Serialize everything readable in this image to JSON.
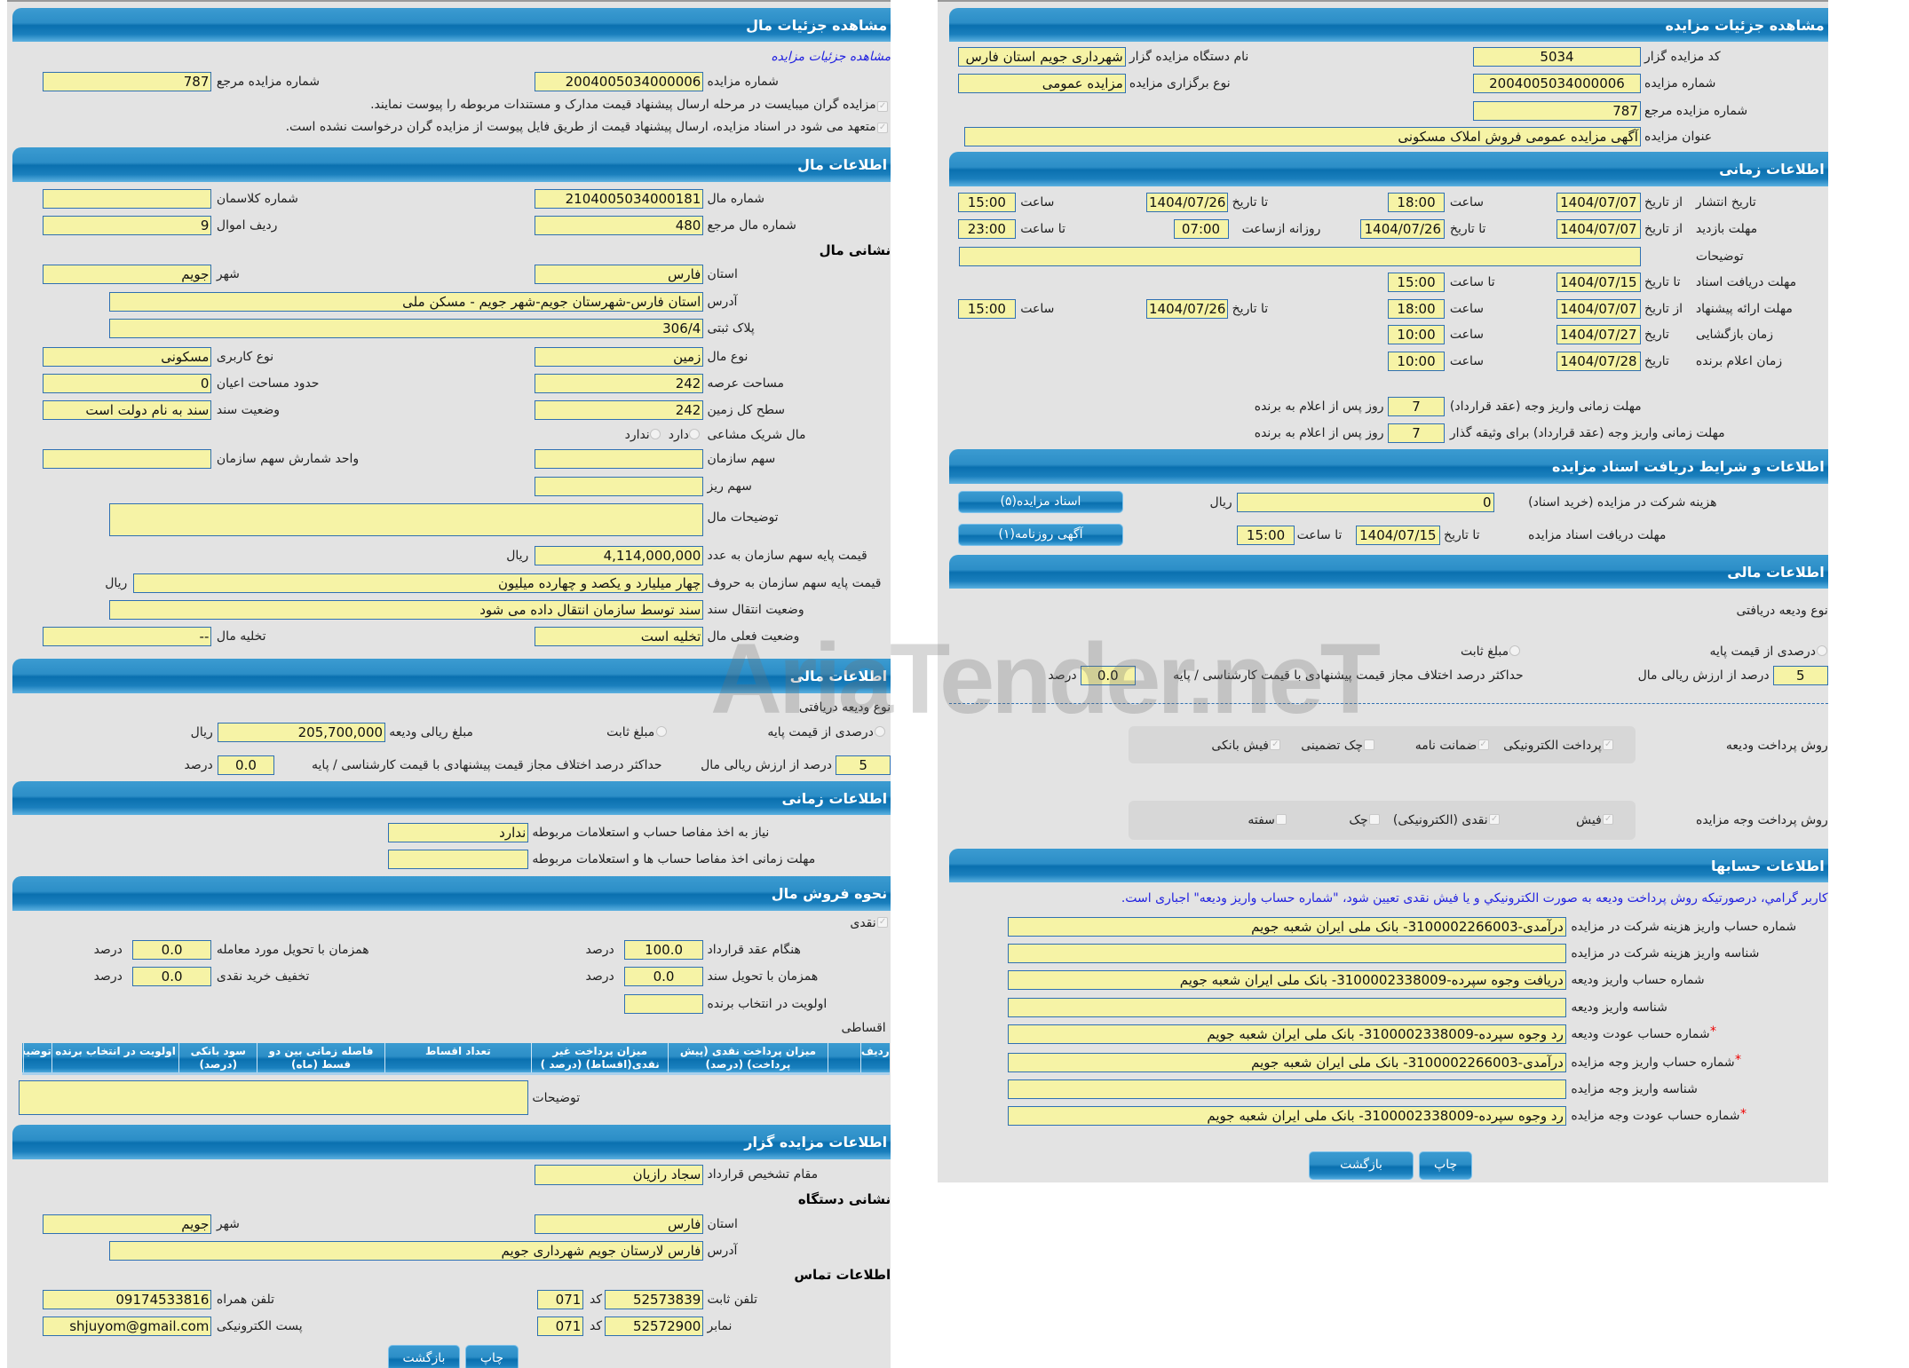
{
  "mal": {
    "header": "مشاهده جزئیات مال",
    "auction_link": "مشاهده جزئیات مزایده",
    "auction_number": {
      "label": "شماره مزایده",
      "value": "2004005034000006"
    },
    "auction_ref_number": {
      "label": "شماره مزایده مرجع",
      "value": "787"
    },
    "notice_attach": "مزایده گران میبایست در مرحله ارسال پیشنهاد قیمت مدارک و مستندات مربوطه را پیوست نمایند.",
    "notice_commit": "متعهد می شود در اسناد مزایده، ارسال پیشنهاد قیمت از طریق فایل پیوست از مزایده گران درخواست نشده است."
  },
  "mal_info": {
    "header": "اطلاعات مال",
    "item_number": {
      "label": "شماره مال",
      "value": "2104005034000181"
    },
    "class_number": {
      "label": "شماره کلاسمان",
      "value": ""
    },
    "item_ref_number": {
      "label": "شماره مال مرجع",
      "value": "480"
    },
    "asset_row": {
      "label": "ردیف اموال",
      "value": "9"
    },
    "address_heading": "نشانی مال",
    "province": {
      "label": "استان",
      "value": "فارس"
    },
    "city": {
      "label": "شهر",
      "value": "جویم"
    },
    "address": {
      "label": "آدرس",
      "value": "استان فارس-شهرستان جویم-شهر جویم - مسکن ملی"
    },
    "plate": {
      "label": "پلاک ثبتی",
      "value": "306/4"
    },
    "item_type": {
      "label": "نوع مال",
      "value": "زمین"
    },
    "usage_type": {
      "label": "نوع کاربری",
      "value": "مسکونی"
    },
    "land_area": {
      "label": "مساحت عرصه",
      "value": "242"
    },
    "building_area": {
      "label": "حدود مساحت اعیان",
      "value": "0"
    },
    "total_area": {
      "label": "سطح کل زمین",
      "value": "242"
    },
    "deed_status": {
      "label": "وضعیت سند",
      "value": "سند به نام دولت است"
    },
    "shared": {
      "label": "مال شریک مشاعی",
      "yes": "دارد",
      "no": "ندارد"
    },
    "org_share": {
      "label": "سهم سازمان",
      "value": ""
    },
    "share_unit": {
      "label": "واحد شمارش سهم سازمان",
      "value": ""
    },
    "sub_share": {
      "label": "سهم ریز",
      "value": ""
    },
    "description": {
      "label": "توضیحات مال",
      "value": ""
    },
    "base_price_num": {
      "label": "قیمت پایه سهم سازمان به عدد",
      "value": "4,114,000,000",
      "unit": "ریال"
    },
    "base_price_text": {
      "label": "قیمت پایه سهم سازمان به حروف",
      "value": "چهار میلیارد و یکصد و چهارده میلیون",
      "unit": "ریال"
    },
    "deed_transfer": {
      "label": "وضعیت انتقال سند",
      "value": "سند توسط سازمان انتقال داده می شود"
    },
    "current_status": {
      "label": "وضعیت فعلی مال",
      "value": "تخلیه است"
    },
    "evacuation": {
      "label": "تخلیه مال",
      "value": "--"
    }
  },
  "mal_finance": {
    "header": "اطلاعات مالی",
    "deposit_type": "نوع ودیعه دریافتی",
    "opt_percent": "درصدی از قیمت پایه",
    "opt_fixed": "مبلغ ثابت",
    "deposit_amount": {
      "label": "مبلغ ریالی ودیعه",
      "value": "205,700,000",
      "unit": "ریال"
    },
    "percent": {
      "label": "درصد از ارزش ریالی مال",
      "value": "5"
    },
    "max_diff": {
      "label": "حداکثر درصد اختلاف مجاز قیمت پیشنهادی با قیمت کارشناسی / پایه",
      "value": "0.0",
      "unit": "درصد"
    }
  },
  "mal_time": {
    "header": "اطلاعات زمانی",
    "settlement_needed": {
      "label": "نیاز به اخذ مفاصا حساب و استعلامات مربوطه",
      "value": "ندارد"
    },
    "settlement_deadline": {
      "label": "مهلت زمانی اخذ مفاصا حساب ها و استعلامات مربوطه",
      "value": ""
    }
  },
  "sale": {
    "header": "نحوه فروش مال",
    "cash": "نقدی",
    "at_contract": {
      "label": "هنگام عقد قرارداد",
      "value": "100.0",
      "unit": "درصد"
    },
    "at_delivery": {
      "label": "همزمان با تحویل مورد معامله",
      "value": "0.0",
      "unit": "درصد"
    },
    "at_deed": {
      "label": "همزمان با تحویل سند",
      "value": "0.0",
      "unit": "درصد"
    },
    "cash_discount": {
      "label": "تخفیف خرید نقدی",
      "value": "0.0",
      "unit": "درصد"
    },
    "priority": {
      "label": "اولویت در انتخاب برنده",
      "value": ""
    },
    "installments": "اقساطی",
    "table_headers": [
      "ردیف",
      "میزان پرداخت نقدی (پیش پرداخت) (درصد)",
      "میزان پرداخت غیر نقدی(اقساط) (درصد )",
      "تعداد اقساط",
      "فاصله زمانی بین دو قسط (ماه)",
      "سود بانکی (درصد)",
      "اولویت در انتخاب برنده",
      "توضیحات"
    ],
    "description_label": "توضیحات"
  },
  "auctioneer": {
    "header": "اطلاعات مزایده گزار",
    "authority": {
      "label": "مقام تشخیص قرارداد",
      "value": "سجاد رازیان"
    },
    "addr_heading": "نشانی دستگاه",
    "province": {
      "label": "استان",
      "value": "فارس"
    },
    "city": {
      "label": "شهر",
      "value": "جویم"
    },
    "address": {
      "label": "آدرس",
      "value": "فارس لارستان جویم شهرداری جویم"
    },
    "contact_heading": "اطلاعات تماس",
    "phone": {
      "label": "تلفن ثابت",
      "value": "52573839",
      "code_label": "کد",
      "code": "071"
    },
    "fax": {
      "label": "نمابر",
      "value": "52572900",
      "code_label": "کد",
      "code": "071"
    },
    "mobile": {
      "label": "تلفن همراه",
      "value": "09174533816"
    },
    "email": {
      "label": "پست الکترونیکی",
      "value": "shjuyom@gmail.com"
    }
  },
  "left_buttons": {
    "back": "بازگشت",
    "print": "چاپ"
  },
  "auction": {
    "header": "مشاهده جزئیات مزایده",
    "auctioneer_code": {
      "label": "کد مزایده گزار",
      "value": "5034"
    },
    "org_name": {
      "label": "نام دستگاه مزایده گزار",
      "value": "شهرداری جویم استان فارس"
    },
    "auction_number": {
      "label": "شماره مزایده",
      "value": "2004005034000006"
    },
    "holding_type": {
      "label": "نوع برگزاری مزایده",
      "value": "مزایده عمومی"
    },
    "ref_number": {
      "label": "شماره مزایده مرجع",
      "value": "787"
    },
    "title": {
      "label": "عنوان مزایده",
      "value": "آگهی مزایده عمومی فروش املاک مسکونی"
    }
  },
  "schedule": {
    "header": "اطلاعات زمانی",
    "from_date": "از تاریخ",
    "to_date": "تا تاریخ",
    "date": "تاریخ",
    "time": "ساعت",
    "to_time": "تا ساعت",
    "daily_from": "روزانه ازساعت",
    "description_label": "توضیحات",
    "publish": {
      "label": "تاریخ انتشار",
      "from": "1404/07/07",
      "from_time": "18:00",
      "to": "1404/07/26",
      "to_time": "15:00"
    },
    "visit": {
      "label": "مهلت بازدید",
      "from": "1404/07/07",
      "to": "1404/07/26",
      "daily_from": "07:00",
      "to_time": "23:00"
    },
    "docs": {
      "label": "مهلت دریافت اسناد",
      "to": "1404/07/15",
      "to_time": "15:00"
    },
    "offer": {
      "label": "مهلت ارائه پیشنهاد",
      "from": "1404/07/07",
      "from_time": "18:00",
      "to": "1404/07/26",
      "to_time": "15:00"
    },
    "opening": {
      "label": "زمان بازگشایی",
      "date": "1404/07/27",
      "time": "10:00"
    },
    "winner": {
      "label": "زمان اعلام برنده",
      "date": "1404/07/28",
      "time": "10:00"
    },
    "pay_deadline": {
      "label": "مهلت زمانی واریز وجه (عقد قرارداد)",
      "value": "7",
      "suffix": "روز پس از اعلام به برنده"
    },
    "pay_deadline_guarantor": {
      "label": "مهلت زمانی واریز وجه (عقد قرارداد) برای وثیقه گذار",
      "value": "7",
      "suffix": "روز پس از اعلام به برنده"
    }
  },
  "docs": {
    "header": "اطلاعات و شرایط دریافت اسناد مزایده",
    "fee": {
      "label": "هزینه شرکت در مزایده (خرید اسناد)",
      "value": "0",
      "unit": "ریال"
    },
    "deadline": {
      "label": "مهلت دریافت اسناد مزایده",
      "to_date_label": "تا تاریخ",
      "date": "1404/07/15",
      "to_time_label": "تا ساعت",
      "time": "15:00"
    },
    "docs_button": "اسناد مزایده(۵)",
    "ad_button": "آگهی روزنامه(۱)"
  },
  "finance": {
    "header": "اطلاعات مالی",
    "deposit_type": "نوع ودیعه دریافتی",
    "opt_percent": "درصدی از قیمت پایه",
    "opt_fixed": "مبلغ ثابت",
    "percent": {
      "label": "درصد از ارزش ریالی مال",
      "value": "5"
    },
    "max_diff": {
      "label": "حداکثر درصد اختلاف مجاز قیمت پیشنهادی با قیمت کارشناسی / پایه",
      "value": "0.0",
      "unit": "درصد"
    },
    "deposit_methods": {
      "label": "روش پرداخت ودیعه",
      "options": [
        {
          "label": "پرداخت الکترونیکی",
          "checked": true
        },
        {
          "label": "ضمانت نامه",
          "checked": true
        },
        {
          "label": "چک تضمینی",
          "checked": false
        },
        {
          "label": "فیش بانکی",
          "checked": true
        }
      ]
    },
    "payment_methods": {
      "label": "روش پرداخت وجه مزایده",
      "options": [
        {
          "label": "فیش",
          "checked": true
        },
        {
          "label": "نقدی (الکترونیکی)",
          "checked": true
        },
        {
          "label": "چک",
          "checked": false
        },
        {
          "label": "سفته",
          "checked": false
        }
      ]
    }
  },
  "accounts": {
    "header": "اطلاعات حسابها",
    "notice": "کاربر گرامي، درصورتيكه روش پرداخت وديعه به صورت الكترونيكي و يا فيش نقدی تعيين شود، \"شماره حساب واريز وديعه\" اجباری است.",
    "required_mark": "*",
    "rows": [
      {
        "label": "شماره حساب واریز هزینه شرکت در مزایده",
        "value": "درآمدی-3100002266003- بانک ملی ایران شعبه جویم",
        "required": false
      },
      {
        "label": "شناسه واریز هزینه شرکت در مزایده",
        "value": "",
        "required": false
      },
      {
        "label": "شماره حساب واریز ودیعه",
        "value": "دریافت وجوه سپرده-3100002338009- بانک ملی ایران شعبه جویم",
        "required": false
      },
      {
        "label": "شناسه واریز ودیعه",
        "value": "",
        "required": false
      },
      {
        "label": "شماره حساب عودت ودیعه",
        "value": "رد وجوه سپرده-3100002338009- بانک ملی ایران شعبه جویم",
        "required": true
      },
      {
        "label": "شماره حساب واریز وجه مزایده",
        "value": "درآمدی-3100002266003- بانک ملی ایران شعبه جویم",
        "required": true
      },
      {
        "label": "شناسه واریز وجه مزایده",
        "value": "",
        "required": false
      },
      {
        "label": "شماره حساب عودت وجه مزایده",
        "value": "رد وجوه سپرده-3100002338009- بانک ملی ایران شعبه جویم",
        "required": true
      }
    ]
  },
  "right_buttons": {
    "back": "بازگشت",
    "print": "چاپ"
  },
  "watermark": "AriaTender.neT",
  "colors": {
    "header_blue": "#0a70af",
    "field_yellow": "#f6f3a6",
    "panel_gray": "#e3e3e3",
    "link_blue": "#2323e0",
    "required_red": "#e00000"
  }
}
